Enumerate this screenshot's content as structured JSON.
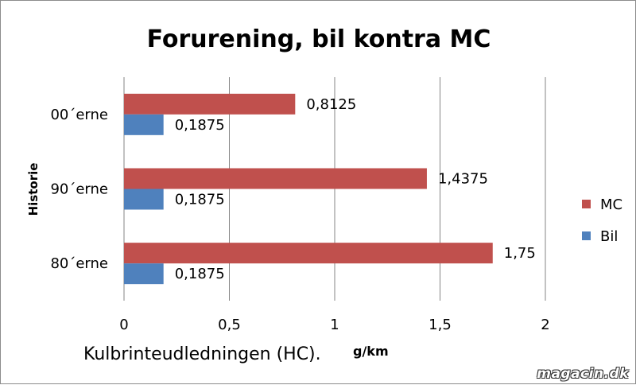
{
  "chart_data": {
    "type": "bar",
    "orientation": "horizontal",
    "title": "Forurening, bil kontra MC",
    "xlabel": "Kulbrinteudledningen (HC).",
    "xlabel_unit": "g/km",
    "ylabel": "Historie",
    "categories": [
      "80´erne",
      "90´erne",
      "00´erne"
    ],
    "series": [
      {
        "name": "MC",
        "color": "#c0504d",
        "values": [
          1.75,
          1.4375,
          0.8125
        ],
        "labels": [
          "1,75",
          "1,4375",
          "0,8125"
        ]
      },
      {
        "name": "Bil",
        "color": "#4f81bd",
        "values": [
          0.1875,
          0.1875,
          0.1875
        ],
        "labels": [
          "0,1875",
          "0,1875",
          "0,1875"
        ]
      }
    ],
    "xlim": [
      0,
      2
    ],
    "xticks": [
      0,
      0.5,
      1,
      1.5,
      2
    ],
    "xtick_labels": [
      "0",
      "0,5",
      "1",
      "1,5",
      "2"
    ],
    "grid": true,
    "legend_position": "right"
  },
  "watermark": "magacin.dk"
}
